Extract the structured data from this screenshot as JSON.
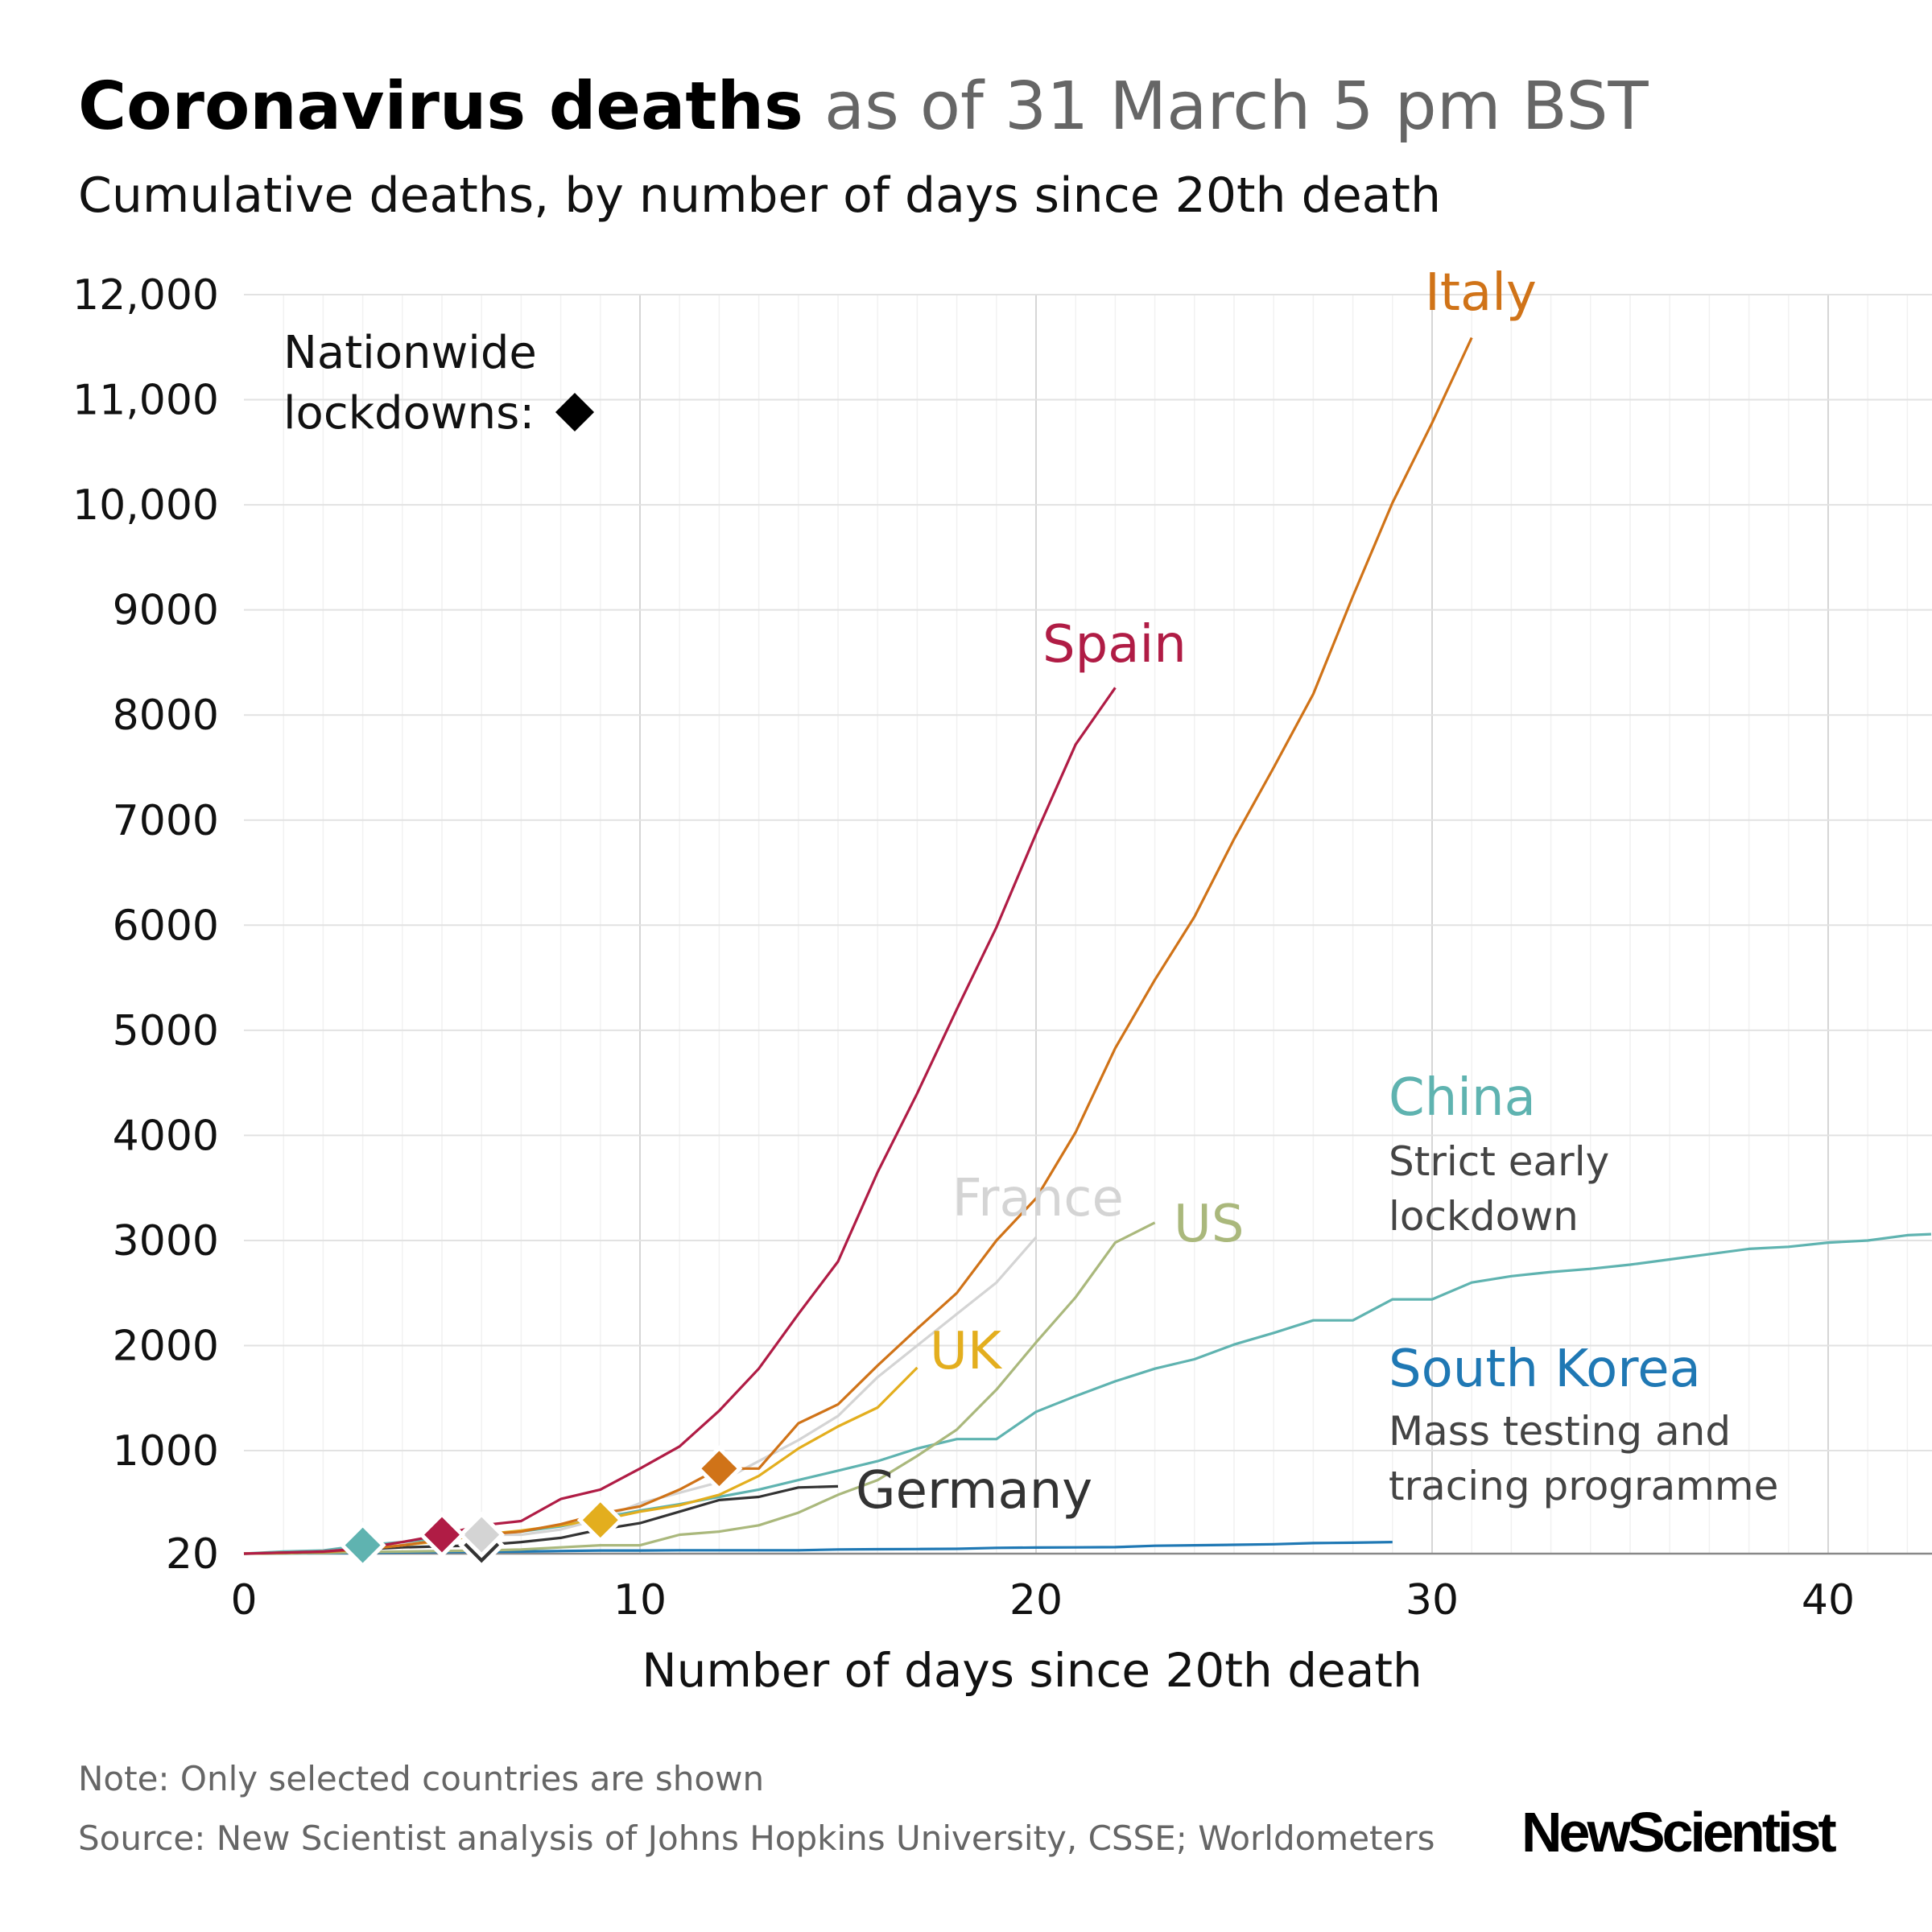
{
  "title": {
    "bold": "Coronavirus deaths",
    "rest": " as of 31 March 5 pm BST"
  },
  "subtitle": "Cumulative deaths, by number of days since 20th death",
  "legend": {
    "line1": "Nationwide",
    "line2": "lockdowns:",
    "marker_color": "#000000"
  },
  "annotations": {
    "china": "Strict early|lockdown",
    "china_line1": "Strict early",
    "china_line2": "lockdown",
    "korea_line1": "Mass testing and",
    "korea_line2": "tracing programme"
  },
  "footer": {
    "note": "Note: Only selected countries are shown",
    "source": "Source: New Scientist analysis of Johns Hopkins University, CSSE; Worldometers",
    "logo": "NewScientist"
  },
  "chart_data": {
    "type": "line",
    "title": "Coronavirus deaths as of 31 March 5 pm BST",
    "subtitle": "Cumulative deaths, by number of days since 20th death",
    "xlabel": "Number of days since 20th death",
    "ylabel": "",
    "xlim": [
      0,
      42.6
    ],
    "ylim": [
      20,
      12000
    ],
    "xticks": [
      0,
      10,
      20,
      30,
      40
    ],
    "yticks": [
      20,
      1000,
      2000,
      3000,
      4000,
      5000,
      6000,
      7000,
      8000,
      9000,
      10000,
      11000,
      12000
    ],
    "ytick_labels": [
      "20",
      "1000",
      "2000",
      "3000",
      "4000",
      "5000",
      "6000",
      "7000",
      "8000",
      "9000",
      "10,000",
      "11,000",
      "12,000"
    ],
    "grid": true,
    "series": [
      {
        "name": "China",
        "color": "#5fb3b0",
        "lockdown_day": 3,
        "values": [
          20,
          40,
          50,
          100,
          130,
          170,
          200,
          230,
          280,
          360,
          430,
          490,
          560,
          630,
          720,
          810,
          900,
          1020,
          1110,
          1110,
          1370,
          1520,
          1660,
          1780,
          1870,
          2010,
          2120,
          2240,
          2240,
          2440,
          2440,
          2600,
          2660,
          2700,
          2730,
          2770,
          2820,
          2870,
          2920,
          2940,
          2980,
          3000,
          3050,
          3060
        ]
      },
      {
        "name": "South Korea",
        "color": "#1f78b4",
        "lockdown_day": null,
        "values": [
          20,
          22,
          25,
          28,
          32,
          35,
          38,
          40,
          45,
          50,
          50,
          52,
          52,
          52,
          52,
          60,
          62,
          64,
          66,
          75,
          78,
          80,
          82,
          95,
          100,
          104,
          110,
          120,
          124,
          130
        ]
      },
      {
        "name": "US",
        "color": "#aab87c",
        "lockdown_day": null,
        "values": [
          20,
          24,
          28,
          36,
          40,
          45,
          50,
          60,
          80,
          100,
          100,
          200,
          230,
          290,
          410,
          580,
          720,
          950,
          1200,
          1580,
          2030,
          2460,
          2980,
          3170
        ]
      },
      {
        "name": "Germany",
        "color": "#333333",
        "lockdown_day": 6,
        "values": [
          20,
          25,
          40,
          60,
          80,
          90,
          100,
          130,
          170,
          250,
          310,
          420,
          530,
          560,
          650,
          660
        ]
      },
      {
        "name": "UK",
        "color": "#e3ae1e",
        "lockdown_day": 9,
        "values": [
          20,
          25,
          40,
          60,
          100,
          140,
          200,
          240,
          290,
          340,
          420,
          480,
          580,
          760,
          1020,
          1230,
          1410,
          1790
        ]
      },
      {
        "name": "France",
        "color": "#d4d4d4",
        "lockdown_day": 6,
        "values": [
          20,
          30,
          40,
          70,
          100,
          150,
          200,
          200,
          250,
          350,
          500,
          600,
          700,
          900,
          1100,
          1330,
          1700,
          2000,
          2300,
          2600,
          3030
        ]
      },
      {
        "name": "Italy",
        "color": "#d07318",
        "lockdown_day": 12,
        "values": [
          20,
          30,
          35,
          60,
          100,
          150,
          200,
          230,
          300,
          400,
          470,
          630,
          830,
          830,
          1260,
          1440,
          1810,
          2160,
          2500,
          3000,
          3400,
          4030,
          4830,
          5480,
          6080,
          6820,
          7500,
          8200,
          9130,
          10020,
          10780,
          11590
        ]
      },
      {
        "name": "Spain",
        "color": "#b01c45",
        "lockdown_day": 5,
        "values": [
          20,
          30,
          40,
          70,
          130,
          200,
          290,
          330,
          540,
          630,
          830,
          1040,
          1380,
          1780,
          2300,
          2800,
          3650,
          4400,
          5200,
          5980,
          6870,
          7720,
          8260
        ]
      }
    ]
  }
}
